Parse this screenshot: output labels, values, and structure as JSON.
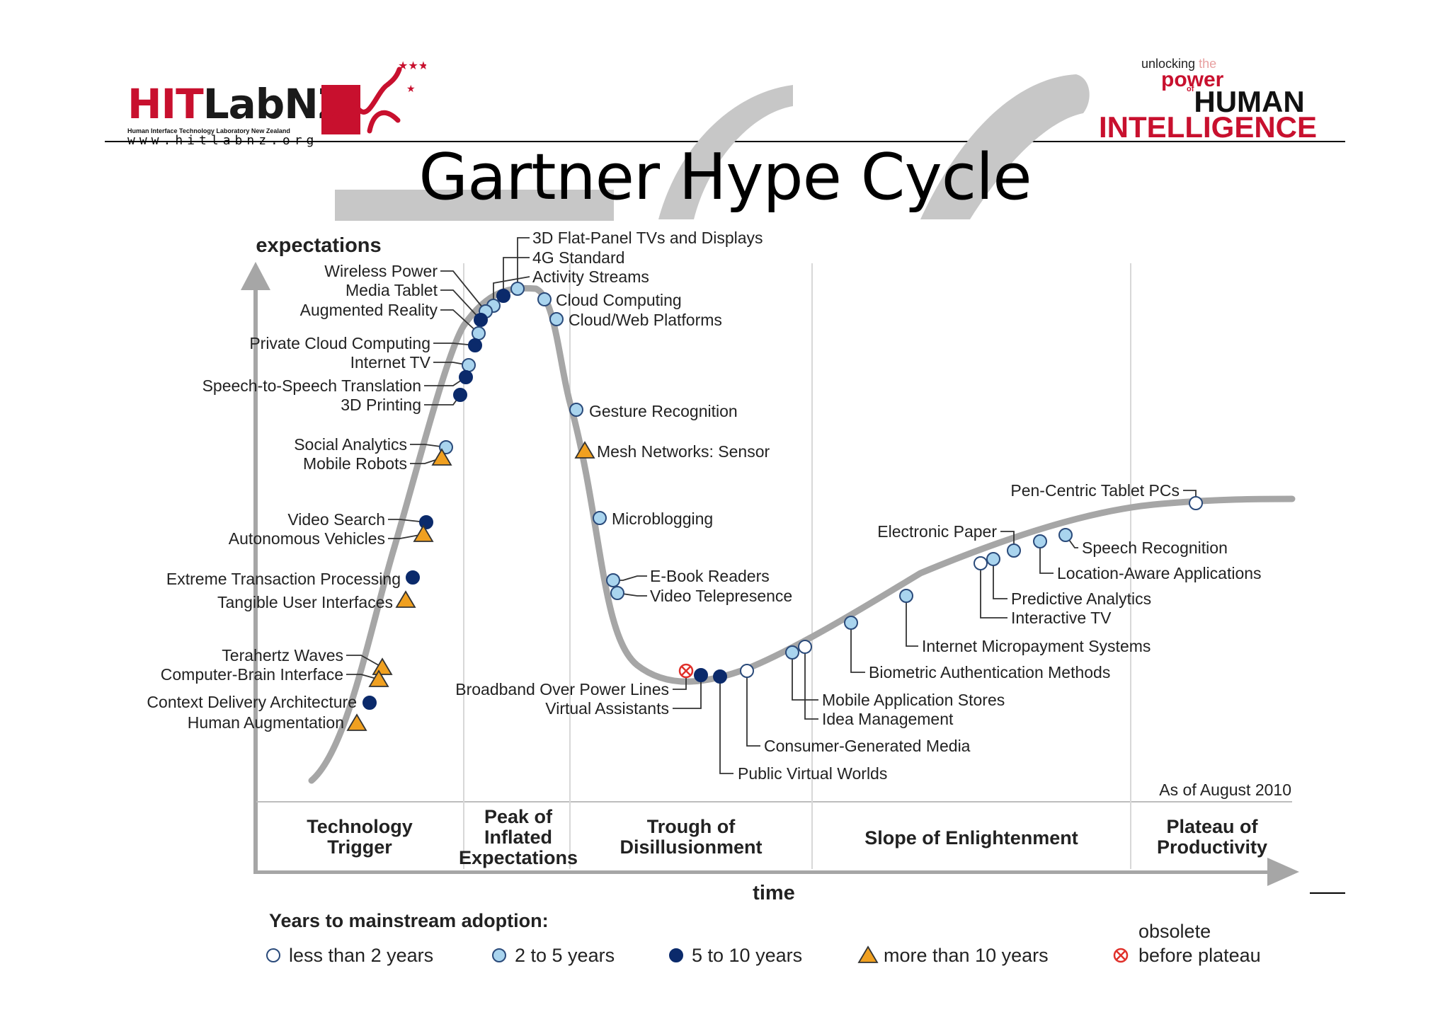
{
  "header": {
    "left_logo": {
      "main_red": "HIT",
      "main_dark": "LabNZ",
      "tagline": "Human Interface Technology Laboratory New Zealand",
      "url": "www.hitlabnz.org"
    },
    "right_logo": {
      "line1": "unlocking",
      "line1_the": "the",
      "line2": "power",
      "line3_of": "of",
      "line3": "HUMAN",
      "line4": "INTELLIGENCE"
    },
    "title": "Gartner Hype Cycle"
  },
  "colors": {
    "curve": "#a6a6a6",
    "less_than_2": "#ffffff",
    "two_to_5": "#a9d4ee",
    "five_to_10": "#0b2a6b",
    "more_than_10": "#f0a020",
    "obsolete": "#e0302a",
    "brand_red": "#c8102e",
    "swoosh": "#c7c7c7"
  },
  "chart_data": {
    "type": "scatter",
    "y_axis_label": "expectations",
    "x_axis_label": "time",
    "note": "As of August 2010",
    "phases": [
      "Technology Trigger",
      "Peak of Inflated Expectations",
      "Trough of Disillusionment",
      "Slope of Enlightenment",
      "Plateau of Productivity"
    ],
    "legend": {
      "title": "Years to mainstream adoption:",
      "items": [
        {
          "key": "lt2",
          "label": "less than 2 years"
        },
        {
          "key": "2to5",
          "label": "2 to 5 years"
        },
        {
          "key": "5to10",
          "label": "5 to 10 years"
        },
        {
          "key": "gt10",
          "label": "more than 10 years"
        },
        {
          "key": "obs",
          "label_line1": "obsolete",
          "label_line2": "before plateau"
        }
      ]
    },
    "technologies": [
      {
        "name": "3D Flat-Panel TVs and Displays",
        "category": "2to5"
      },
      {
        "name": "4G Standard",
        "category": "5to10"
      },
      {
        "name": "Activity Streams",
        "category": "2to5"
      },
      {
        "name": "Wireless Power",
        "category": "2to5"
      },
      {
        "name": "Media Tablet",
        "category": "5to10"
      },
      {
        "name": "Augmented Reality",
        "category": "2to5"
      },
      {
        "name": "Private Cloud Computing",
        "category": "5to10"
      },
      {
        "name": "Internet TV",
        "category": "2to5"
      },
      {
        "name": "Speech-to-Speech Translation",
        "category": "5to10"
      },
      {
        "name": "3D Printing",
        "category": "5to10"
      },
      {
        "name": "Social Analytics",
        "category": "2to5"
      },
      {
        "name": "Mobile Robots",
        "category": "gt10"
      },
      {
        "name": "Video Search",
        "category": "5to10"
      },
      {
        "name": "Autonomous Vehicles",
        "category": "gt10"
      },
      {
        "name": "Extreme Transaction Processing",
        "category": "5to10"
      },
      {
        "name": "Tangible User Interfaces",
        "category": "gt10"
      },
      {
        "name": "Terahertz Waves",
        "category": "gt10"
      },
      {
        "name": "Computer-Brain Interface",
        "category": "gt10"
      },
      {
        "name": "Context Delivery Architecture",
        "category": "5to10"
      },
      {
        "name": "Human Augmentation",
        "category": "gt10"
      },
      {
        "name": "Cloud Computing",
        "category": "2to5"
      },
      {
        "name": "Cloud/Web Platforms",
        "category": "2to5"
      },
      {
        "name": "Gesture Recognition",
        "category": "2to5"
      },
      {
        "name": "Mesh Networks: Sensor",
        "category": "gt10"
      },
      {
        "name": "Microblogging",
        "category": "2to5"
      },
      {
        "name": "E-Book Readers",
        "category": "2to5"
      },
      {
        "name": "Video Telepresence",
        "category": "2to5"
      },
      {
        "name": "Broadband Over Power Lines",
        "category": "obs"
      },
      {
        "name": "Virtual Assistants",
        "category": "5to10"
      },
      {
        "name": "Public Virtual Worlds",
        "category": "5to10"
      },
      {
        "name": "Consumer-Generated Media",
        "category": "lt2"
      },
      {
        "name": "Mobile Application Stores",
        "category": "2to5"
      },
      {
        "name": "Idea Management",
        "category": "lt2"
      },
      {
        "name": "Biometric Authentication Methods",
        "category": "2to5"
      },
      {
        "name": "Internet Micropayment Systems",
        "category": "2to5"
      },
      {
        "name": "Predictive Analytics",
        "category": "2to5"
      },
      {
        "name": "Interactive TV",
        "category": "lt2"
      },
      {
        "name": "Electronic Paper",
        "category": "2to5"
      },
      {
        "name": "Location-Aware Applications",
        "category": "2to5"
      },
      {
        "name": "Speech Recognition",
        "category": "2to5"
      },
      {
        "name": "Pen-Centric Tablet PCs",
        "category": "lt2"
      }
    ]
  }
}
